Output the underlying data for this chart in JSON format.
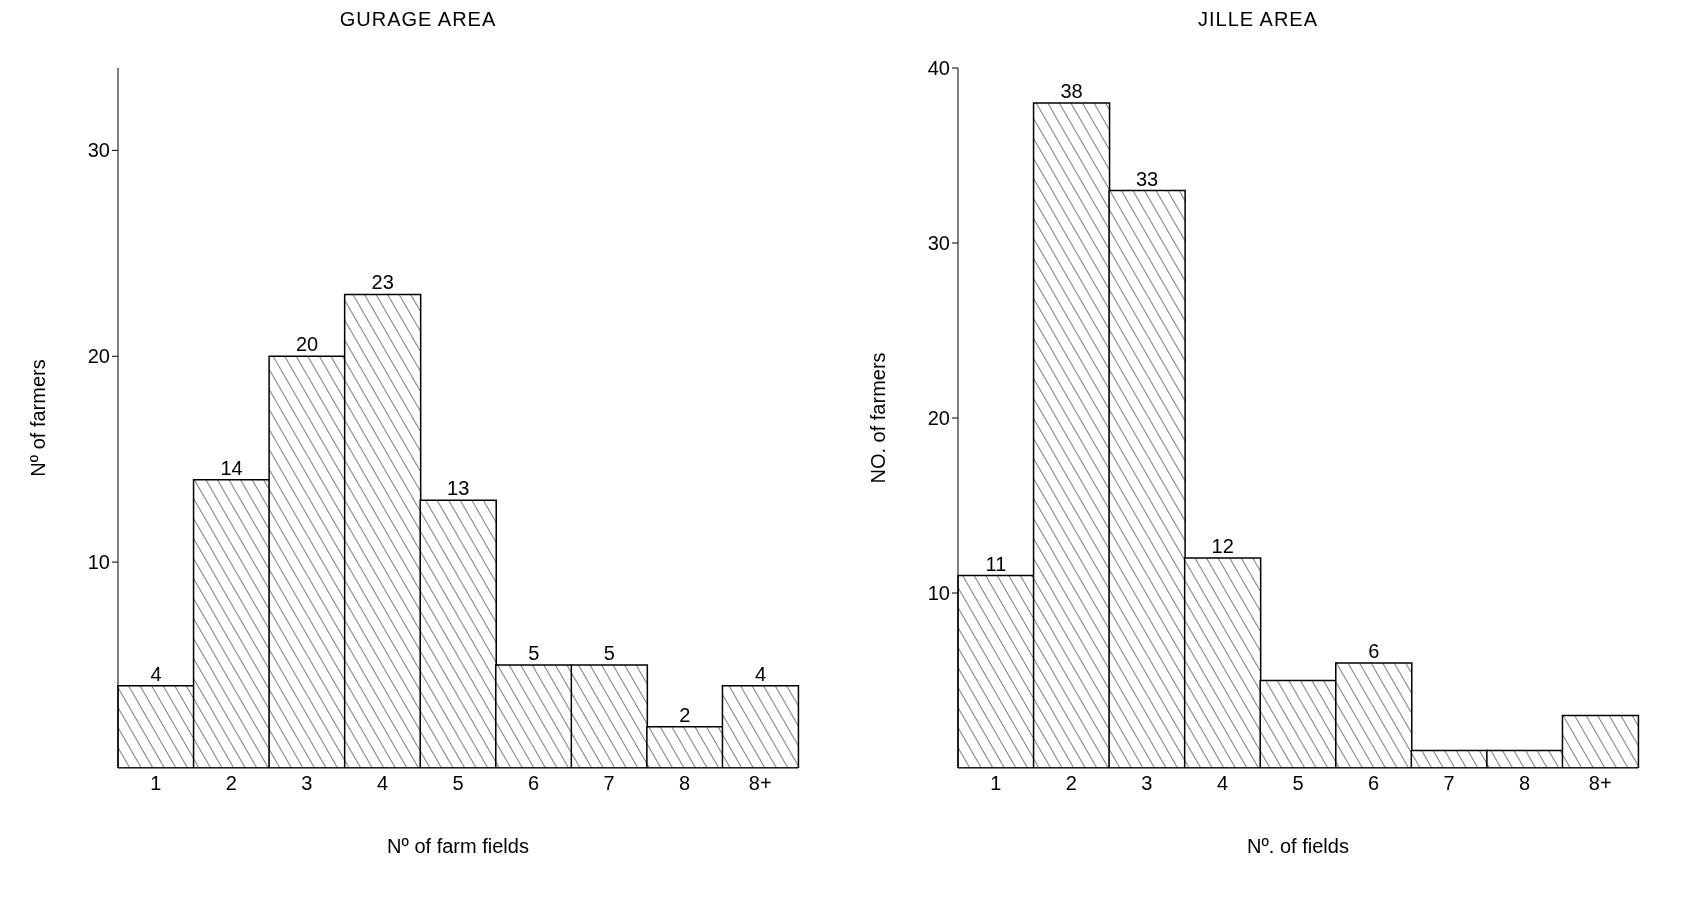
{
  "chart_data": [
    {
      "type": "bar",
      "title": "GURAGE AREA",
      "xlabel": "Nº of farm fields",
      "ylabel": "Nº of farmers",
      "categories": [
        "1",
        "2",
        "3",
        "4",
        "5",
        "6",
        "7",
        "8",
        "8+"
      ],
      "values": [
        4,
        14,
        20,
        23,
        13,
        5,
        5,
        2,
        4
      ],
      "color": "#000000",
      "data_labels": true,
      "ylim": [
        0,
        34
      ],
      "yticks": [
        10,
        20,
        30
      ]
    },
    {
      "type": "bar",
      "title": "JILLE AREA",
      "xlabel": "Nº. of fields",
      "ylabel": "NO. of farmers",
      "categories": [
        "1",
        "2",
        "3",
        "4",
        "5",
        "6",
        "7",
        "8",
        "8+"
      ],
      "values": [
        11,
        38,
        33,
        12,
        5,
        6,
        1,
        1,
        3
      ],
      "value_labels": [
        "11",
        "38",
        "33",
        "12",
        null,
        "6",
        null,
        null,
        null
      ],
      "color": "#000000",
      "ylim": [
        0,
        40
      ],
      "yticks": [
        10,
        20,
        30,
        40
      ]
    }
  ]
}
